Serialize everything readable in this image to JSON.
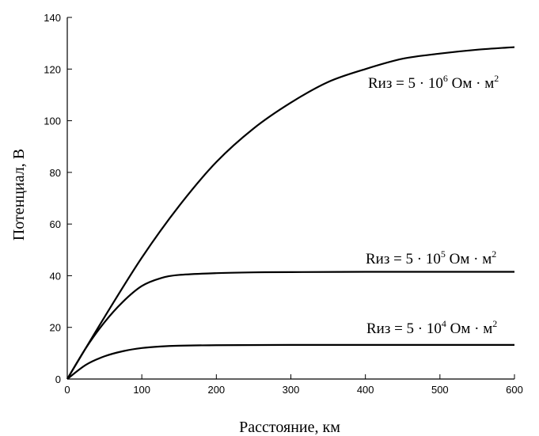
{
  "chart_data": {
    "type": "line",
    "xlabel": "Расстояние, км",
    "ylabel": "Потенциал, В",
    "xlim": [
      0,
      600
    ],
    "ylim": [
      0,
      140
    ],
    "xticks": [
      0,
      100,
      200,
      300,
      400,
      500,
      600
    ],
    "yticks": [
      0,
      20,
      40,
      60,
      80,
      100,
      120,
      140
    ],
    "grid": false,
    "series": [
      {
        "label": "Rиз = 5 · 10⁶ Ом · м²",
        "label_parts": {
          "prefix": "Rиз = 5 · 10",
          "exp": "6",
          "unit": " Ом · м",
          "unit_exp": "2"
        },
        "x": [
          0,
          50,
          100,
          150,
          200,
          250,
          300,
          350,
          400,
          450,
          500,
          550,
          600
        ],
        "y": [
          0,
          24,
          47,
          67,
          84,
          97,
          107,
          115,
          120,
          124,
          126,
          127.5,
          128.5
        ]
      },
      {
        "label": "Rиз = 5 · 10⁵ Ом · м²",
        "label_parts": {
          "prefix": "Rиз = 5 · 10",
          "exp": "5",
          "unit": " Ом · м",
          "unit_exp": "2"
        },
        "x": [
          0,
          25,
          50,
          75,
          100,
          125,
          150,
          200,
          250,
          300,
          400,
          500,
          600
        ],
        "y": [
          0,
          12,
          22,
          30,
          36,
          39,
          40.3,
          41,
          41.3,
          41.4,
          41.5,
          41.5,
          41.5
        ]
      },
      {
        "label": "Rиз = 5 · 10⁴ Ом · м²",
        "label_parts": {
          "prefix": "Rиз = 5 · 10",
          "exp": "4",
          "unit": " Ом · м",
          "unit_exp": "2"
        },
        "x": [
          0,
          25,
          50,
          75,
          100,
          125,
          150,
          200,
          300,
          400,
          500,
          600
        ],
        "y": [
          0,
          5.5,
          8.8,
          10.8,
          12,
          12.6,
          12.9,
          13.1,
          13.2,
          13.2,
          13.2,
          13.2
        ]
      }
    ]
  }
}
